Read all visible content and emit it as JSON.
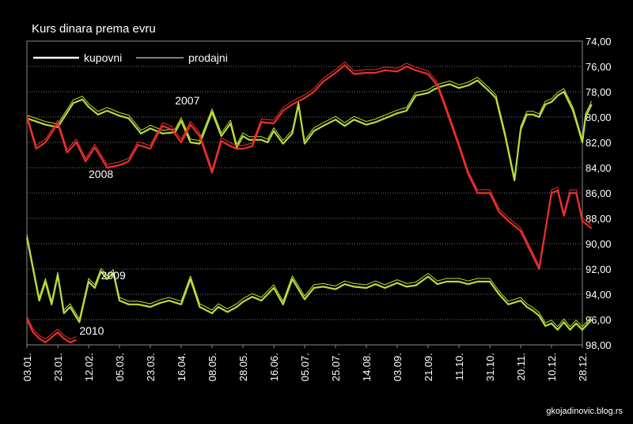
{
  "chart_data": {
    "type": "line",
    "title": "Kurs dinara prema evru",
    "credit": "gkojadinovic.blog.rs",
    "y_inverted": true,
    "ylim": [
      74,
      98
    ],
    "yticks": [
      "74,00",
      "76,00",
      "78,00",
      "80,00",
      "82,00",
      "84,00",
      "86,00",
      "88,00",
      "90,00",
      "92,00",
      "94,00",
      "96,00",
      "98,00"
    ],
    "x_ticks": [
      "03.01.",
      "23.01.",
      "12.02.",
      "05.03.",
      "23.03.",
      "16.04.",
      "08.05.",
      "28.05.",
      "16.06.",
      "05.07.",
      "25.07.",
      "14.08.",
      "03.09.",
      "21.09.",
      "11.10.",
      "31.10.",
      "20.11.",
      "10.12.",
      "28.12."
    ],
    "grid": true,
    "legend": {
      "position": "top-left",
      "items": [
        {
          "label": "kupovni",
          "stroke": "thick"
        },
        {
          "label": "prodajni",
          "stroke": "thin"
        }
      ]
    },
    "colors": {
      "2007": "#b8dc3c",
      "2008": "#e8302c",
      "2009": "#b8dc3c",
      "2010": "#e8302c"
    },
    "series": [
      {
        "name": "2007",
        "label_at_tick": 5.2,
        "label_value": 79.0,
        "x": [
          0,
          0.6,
          1,
          1.5,
          1.8,
          2,
          2.3,
          2.6,
          3,
          3.3,
          3.7,
          4,
          4.4,
          4.8,
          5,
          5.3,
          5.6,
          6,
          6.3,
          6.6,
          6.8,
          7,
          7.2,
          7.4,
          7.6,
          7.8,
          8,
          8.3,
          8.6,
          8.8,
          9,
          9.3,
          9.6,
          10,
          10.3,
          10.6,
          11,
          11.3,
          11.6,
          12,
          12.3,
          12.6,
          13,
          13.2,
          13.4,
          13.7,
          14,
          14.3,
          14.6,
          15,
          15.2,
          15.5,
          15.8,
          16,
          16.2,
          16.4,
          16.6,
          16.8,
          17,
          17.2,
          17.4,
          17.7,
          18,
          18.1,
          18.3
        ],
        "y": [
          80.1,
          80.6,
          80.8,
          78.9,
          78.6,
          79.2,
          79.8,
          79.5,
          79.9,
          80.1,
          81.3,
          80.9,
          81.3,
          81.2,
          80.3,
          82.0,
          82.1,
          79.6,
          81.5,
          80.5,
          82.4,
          81.5,
          81.8,
          81.8,
          81.8,
          82.0,
          81.1,
          82.1,
          81.3,
          79.0,
          82.1,
          81.1,
          80.7,
          80.2,
          80.7,
          80.2,
          80.6,
          80.4,
          80.1,
          79.7,
          79.5,
          78.3,
          78.1,
          77.8,
          77.6,
          77.4,
          77.7,
          77.5,
          77.1,
          78.0,
          78.5,
          81.5,
          85.0,
          81.0,
          79.8,
          79.8,
          80.0,
          79.0,
          78.8,
          78.3,
          78.0,
          79.5,
          82.0,
          80.0,
          79.0
        ]
      },
      {
        "name": "2008",
        "label_at_tick": 2.4,
        "label_value": 84.8,
        "x": [
          0,
          0.3,
          0.6,
          1,
          1.3,
          1.6,
          1.9,
          2.2,
          2.6,
          3,
          3.3,
          3.6,
          4,
          4.2,
          4.4,
          4.7,
          5,
          5.3,
          5.6,
          6,
          6.3,
          6.6,
          6.8,
          7,
          7.3,
          7.6,
          8,
          8.3,
          8.6,
          9,
          9.3,
          9.6,
          10,
          10.3,
          10.6,
          11,
          11.3,
          11.6,
          12,
          12.3,
          12.6,
          13,
          13.3,
          13.6,
          14,
          14.3,
          14.6,
          15,
          15.3,
          15.6,
          16,
          16.3,
          16.6,
          16.8,
          17,
          17.2,
          17.4,
          17.6,
          17.8,
          18,
          18.3
        ],
        "y": [
          80.0,
          82.5,
          82.0,
          80.5,
          82.8,
          82.0,
          83.5,
          82.4,
          84.0,
          83.8,
          83.5,
          82.2,
          82.5,
          81.5,
          80.7,
          81.0,
          82.0,
          80.6,
          81.5,
          84.4,
          81.9,
          82.3,
          82.5,
          82.5,
          82.3,
          80.4,
          80.5,
          79.5,
          79.0,
          78.5,
          78.0,
          77.2,
          76.5,
          75.9,
          76.6,
          76.5,
          76.5,
          76.3,
          76.4,
          76.0,
          76.3,
          76.6,
          77.5,
          79.5,
          82.3,
          84.5,
          86.0,
          86.0,
          87.5,
          88.2,
          89.0,
          90.5,
          92.0,
          89.0,
          86.0,
          85.8,
          87.8,
          86.0,
          86.0,
          88.2,
          88.8
        ]
      },
      {
        "name": "2009",
        "label_at_tick": 2.8,
        "label_value": 92.8,
        "x": [
          0,
          0.2,
          0.4,
          0.6,
          0.8,
          1,
          1.2,
          1.4,
          1.7,
          2,
          2.2,
          2.4,
          2.6,
          2.8,
          3,
          3.3,
          3.6,
          4,
          4.3,
          4.6,
          5,
          5.3,
          5.6,
          6,
          6.2,
          6.5,
          6.8,
          7,
          7.3,
          7.6,
          8,
          8.3,
          8.6,
          9,
          9.3,
          9.6,
          10,
          10.3,
          10.6,
          11,
          11.3,
          11.6,
          12,
          12.3,
          12.6,
          13,
          13.3,
          13.6,
          14,
          14.3,
          14.6,
          15,
          15.3,
          15.6,
          16,
          16.2,
          16.4,
          16.6,
          16.8,
          17,
          17.2,
          17.4,
          17.6,
          17.8,
          18,
          18.3
        ],
        "y": [
          89.5,
          92.0,
          94.5,
          93.0,
          94.8,
          92.5,
          95.5,
          95.0,
          96.2,
          93.0,
          93.5,
          92.2,
          92.8,
          92.3,
          94.5,
          94.8,
          94.8,
          95.0,
          94.7,
          94.5,
          94.8,
          92.8,
          95.0,
          95.5,
          95.0,
          95.4,
          95.0,
          94.6,
          94.2,
          94.5,
          93.5,
          94.8,
          92.8,
          94.4,
          93.5,
          93.4,
          93.6,
          93.2,
          93.4,
          93.5,
          93.2,
          93.5,
          93.1,
          93.4,
          93.3,
          92.6,
          93.2,
          93.0,
          93.0,
          93.2,
          93.0,
          93.0,
          94.0,
          94.8,
          94.5,
          95.0,
          95.3,
          95.7,
          96.5,
          96.3,
          96.8,
          96.2,
          96.8,
          96.3,
          96.8,
          96.0
        ]
      },
      {
        "name": "2010",
        "label_at_tick": 2.1,
        "label_value": 97.2,
        "x": [
          0,
          0.2,
          0.4,
          0.6,
          0.8,
          1,
          1.2,
          1.4,
          1.6
        ],
        "y": [
          96.0,
          97.0,
          97.5,
          97.8,
          97.4,
          97.0,
          97.5,
          97.8,
          97.6
        ]
      }
    ]
  }
}
